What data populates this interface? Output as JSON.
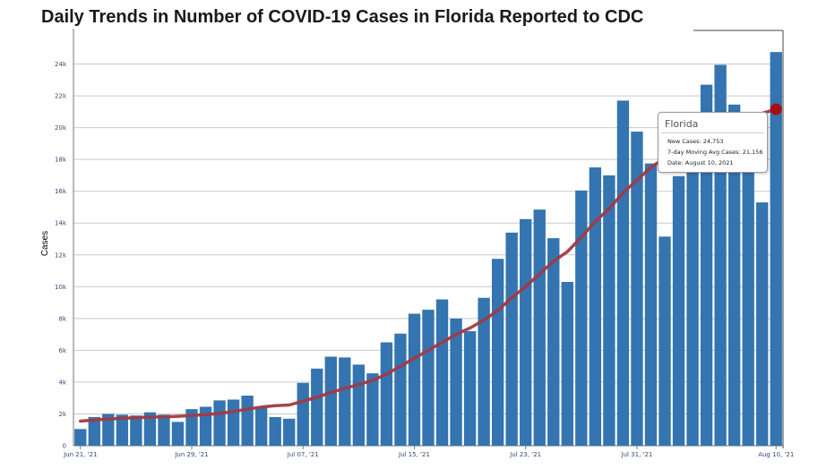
{
  "title": "Daily Trends in Number of COVID-19 Cases in Florida Reported to CDC",
  "colors": {
    "bar": "#3474b0",
    "line": "#a13a43",
    "marker": "#a80d12",
    "grid": "#c9c9c9"
  },
  "tooltip": {
    "title": "Florida",
    "new_cases": "New Cases: 24,753",
    "moving_avg": "7-day Moving Avg Cases: 21,156",
    "date": "Date: August 10, 2021"
  },
  "chart_data": {
    "type": "bar",
    "title": "Daily Trends in Number of COVID-19 Cases in Florida Reported to CDC",
    "xlabel": "",
    "ylabel": "Cases",
    "ylim": [
      0,
      26000
    ],
    "yticks": [
      0,
      2000,
      4000,
      6000,
      8000,
      10000,
      12000,
      14000,
      16000,
      18000,
      20000,
      22000,
      24000
    ],
    "ytick_labels": [
      "0",
      "2k",
      "4k",
      "6k",
      "8k",
      "10k",
      "12k",
      "14k",
      "16k",
      "18k",
      "20k",
      "22k",
      "24k"
    ],
    "xtick_labels": [
      {
        "label": "Jun 21, '21",
        "index": 0
      },
      {
        "label": "Jun 29, '21",
        "index": 8
      },
      {
        "label": "Jul 07, '21",
        "index": 16
      },
      {
        "label": "Jul 15, '21",
        "index": 24
      },
      {
        "label": "Jul 23, '21",
        "index": 32
      },
      {
        "label": "Jul 31, '21",
        "index": 40
      },
      {
        "label": "Aug 10, '21",
        "index": 50
      }
    ],
    "grid": true,
    "dates": [
      "Jun 21",
      "Jun 22",
      "Jun 23",
      "Jun 24",
      "Jun 25",
      "Jun 26",
      "Jun 27",
      "Jun 28",
      "Jun 29",
      "Jun 30",
      "Jul 01",
      "Jul 02",
      "Jul 03",
      "Jul 04",
      "Jul 05",
      "Jul 06",
      "Jul 07",
      "Jul 08",
      "Jul 09",
      "Jul 10",
      "Jul 11",
      "Jul 12",
      "Jul 13",
      "Jul 14",
      "Jul 15",
      "Jul 16",
      "Jul 17",
      "Jul 18",
      "Jul 19",
      "Jul 20",
      "Jul 21",
      "Jul 22",
      "Jul 23",
      "Jul 24",
      "Jul 25",
      "Jul 26",
      "Jul 27",
      "Jul 28",
      "Jul 29",
      "Jul 30",
      "Jul 31",
      "Aug 01",
      "Aug 02",
      "Aug 03",
      "Aug 04",
      "Aug 05",
      "Aug 06",
      "Aug 07",
      "Aug 08",
      "Aug 09",
      "Aug 10"
    ],
    "series": [
      {
        "name": "New Cases",
        "type": "bar",
        "values": [
          1050,
          1800,
          2000,
          1950,
          1900,
          2100,
          1950,
          1500,
          2300,
          2450,
          2850,
          2900,
          3150,
          2450,
          1800,
          1700,
          3950,
          4850,
          5600,
          5550,
          5100,
          4550,
          6500,
          7050,
          8300,
          8550,
          9200,
          8000,
          7200,
          9300,
          11750,
          13400,
          14250,
          14850,
          13050,
          10300,
          16050,
          17500,
          17000,
          21700,
          19750,
          17750,
          13150,
          16950,
          19250,
          22700,
          23950,
          21450,
          19200,
          15300,
          24753
        ]
      },
      {
        "name": "7-day Moving Avg Cases",
        "type": "line",
        "values": [
          1550,
          1620,
          1680,
          1720,
          1760,
          1800,
          1820,
          1850,
          1900,
          1960,
          2030,
          2150,
          2300,
          2430,
          2520,
          2560,
          2800,
          3050,
          3350,
          3600,
          3850,
          4100,
          4500,
          5000,
          5500,
          6000,
          6500,
          7000,
          7400,
          7900,
          8500,
          9300,
          10000,
          10800,
          11600,
          12200,
          13100,
          14100,
          14900,
          15900,
          16700,
          17500,
          18100,
          18600,
          19200,
          19700,
          20200,
          20500,
          20700,
          20900,
          21156
        ]
      }
    ]
  }
}
